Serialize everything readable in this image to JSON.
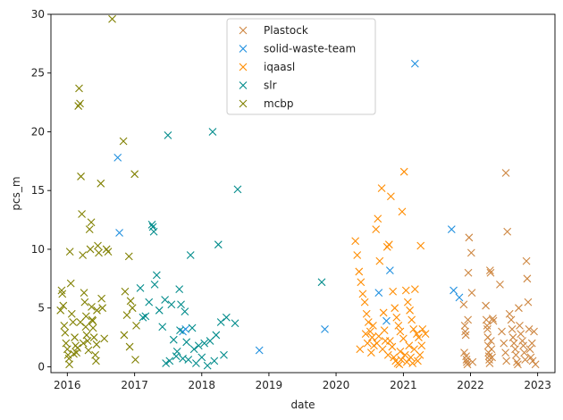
{
  "chart_data": {
    "type": "scatter",
    "marker": "x",
    "xlabel": "date",
    "ylabel": "pcs_m",
    "xlim": [
      "2015-10-04",
      "2023-04-05"
    ],
    "ylim": [
      -0.5,
      30
    ],
    "x_ticks": [
      "2016",
      "2017",
      "2018",
      "2019",
      "2020",
      "2021",
      "2022",
      "2023"
    ],
    "y_ticks": [
      0,
      5,
      10,
      15,
      20,
      25,
      30
    ],
    "grid": false,
    "legend_position": "top-center",
    "series": [
      {
        "name": "Plastock",
        "color": "#cd853f",
        "points": [
          [
            "2021-11-25",
            5.3
          ],
          [
            "2021-12-01",
            3.5
          ],
          [
            "2021-12-03",
            3.0
          ],
          [
            "2021-12-06",
            2.7
          ],
          [
            "2021-12-08",
            0.9
          ],
          [
            "2021-12-10",
            0.6
          ],
          [
            "2021-12-12",
            0.4
          ],
          [
            "2021-12-15",
            0.2
          ],
          [
            "2021-12-20",
            8.0
          ],
          [
            "2021-12-24",
            11.0
          ],
          [
            "2022-01-05",
            9.7
          ],
          [
            "2022-01-08",
            6.3
          ],
          [
            "2022-01-12",
            0.4
          ],
          [
            "2021-11-28",
            1.2
          ],
          [
            "2021-12-18",
            4.0
          ],
          [
            "2022-03-25",
            5.2
          ],
          [
            "2022-03-28",
            4.0
          ],
          [
            "2022-04-01",
            3.5
          ],
          [
            "2022-04-03",
            3.2
          ],
          [
            "2022-04-05",
            2.5
          ],
          [
            "2022-04-07",
            1.8
          ],
          [
            "2022-04-09",
            1.2
          ],
          [
            "2022-04-11",
            0.9
          ],
          [
            "2022-04-13",
            0.6
          ],
          [
            "2022-04-15",
            0.3
          ],
          [
            "2022-04-17",
            8.2
          ],
          [
            "2022-04-20",
            8.0
          ],
          [
            "2022-04-22",
            2.2
          ],
          [
            "2022-04-25",
            1.5
          ],
          [
            "2022-04-28",
            0.8
          ],
          [
            "2022-05-02",
            4.1
          ],
          [
            "2022-05-05",
            3.9
          ],
          [
            "2022-06-10",
            7.0
          ],
          [
            "2022-06-20",
            3.0
          ],
          [
            "2022-07-01",
            2.0
          ],
          [
            "2022-07-10",
            1.2
          ],
          [
            "2022-07-15",
            0.5
          ],
          [
            "2022-07-20",
            11.5
          ],
          [
            "2022-07-12",
            16.5
          ],
          [
            "2022-08-01",
            4.5
          ],
          [
            "2022-08-10",
            4.0
          ],
          [
            "2022-08-15",
            3.2
          ],
          [
            "2022-08-20",
            2.5
          ],
          [
            "2022-08-25",
            2.0
          ],
          [
            "2022-09-01",
            1.5
          ],
          [
            "2022-09-05",
            1.0
          ],
          [
            "2022-09-10",
            0.4
          ],
          [
            "2022-09-15",
            0.2
          ],
          [
            "2022-09-20",
            5.0
          ],
          [
            "2022-09-25",
            3.5
          ],
          [
            "2022-10-01",
            2.8
          ],
          [
            "2022-10-10",
            2.2
          ],
          [
            "2022-10-15",
            1.8
          ],
          [
            "2022-10-20",
            1.2
          ],
          [
            "2022-10-25",
            0.6
          ],
          [
            "2022-11-01",
            9.0
          ],
          [
            "2022-11-05",
            7.5
          ],
          [
            "2022-11-10",
            5.5
          ],
          [
            "2022-11-15",
            3.2
          ],
          [
            "2022-11-20",
            1.5
          ],
          [
            "2022-11-25",
            0.8
          ],
          [
            "2022-12-01",
            2.0
          ],
          [
            "2022-12-05",
            0.5
          ],
          [
            "2022-12-12",
            3.0
          ],
          [
            "2022-12-20",
            0.2
          ]
        ]
      },
      {
        "name": "solid-waste-team",
        "color": "#1f8fdf",
        "points": [
          [
            "2016-10-01",
            17.8
          ],
          [
            "2016-10-10",
            11.4
          ],
          [
            "2017-09-20",
            3.0
          ],
          [
            "2017-10-05",
            3.2
          ],
          [
            "2018-11-10",
            1.4
          ],
          [
            "2019-11-01",
            3.2
          ],
          [
            "2020-08-20",
            6.3
          ],
          [
            "2020-10-01",
            3.9
          ],
          [
            "2020-10-20",
            8.2
          ],
          [
            "2021-03-05",
            25.8
          ],
          [
            "2021-09-20",
            11.7
          ],
          [
            "2021-10-01",
            6.5
          ],
          [
            "2021-11-01",
            5.9
          ]
        ]
      },
      {
        "name": "iqaasl",
        "color": "#ff8c00",
        "points": [
          [
            "2020-04-15",
            10.7
          ],
          [
            "2020-04-25",
            9.5
          ],
          [
            "2020-05-05",
            8.1
          ],
          [
            "2020-05-15",
            7.2
          ],
          [
            "2020-05-25",
            6.2
          ],
          [
            "2020-06-05",
            5.5
          ],
          [
            "2020-06-15",
            4.5
          ],
          [
            "2020-06-25",
            3.8
          ],
          [
            "2020-07-05",
            3.0
          ],
          [
            "2020-07-15",
            2.5
          ],
          [
            "2020-07-25",
            1.8
          ],
          [
            "2020-08-05",
            11.7
          ],
          [
            "2020-08-15",
            12.6
          ],
          [
            "2020-08-25",
            9.0
          ],
          [
            "2020-09-05",
            15.2
          ],
          [
            "2020-09-15",
            4.6
          ],
          [
            "2020-09-25",
            2.2
          ],
          [
            "2020-10-05",
            10.2
          ],
          [
            "2020-10-15",
            10.4
          ],
          [
            "2020-10-25",
            14.5
          ],
          [
            "2020-11-05",
            6.4
          ],
          [
            "2020-11-15",
            5.0
          ],
          [
            "2020-11-25",
            4.2
          ],
          [
            "2020-12-05",
            3.5
          ],
          [
            "2020-12-15",
            3.0
          ],
          [
            "2020-12-25",
            13.2
          ],
          [
            "2021-01-05",
            16.6
          ],
          [
            "2021-01-15",
            6.5
          ],
          [
            "2021-01-25",
            5.5
          ],
          [
            "2021-02-05",
            4.8
          ],
          [
            "2021-02-15",
            4.0
          ],
          [
            "2021-02-25",
            3.2
          ],
          [
            "2021-03-05",
            6.6
          ],
          [
            "2021-03-15",
            2.8
          ],
          [
            "2021-03-25",
            2.5
          ],
          [
            "2021-04-05",
            10.3
          ],
          [
            "2021-04-15",
            3.2
          ],
          [
            "2021-05-01",
            2.8
          ],
          [
            "2020-05-10",
            1.5
          ],
          [
            "2020-06-10",
            2.8
          ],
          [
            "2020-07-10",
            1.2
          ],
          [
            "2020-08-10",
            2.0
          ],
          [
            "2020-09-10",
            1.5
          ],
          [
            "2020-10-10",
            1.0
          ],
          [
            "2020-11-10",
            0.8
          ],
          [
            "2020-11-20",
            0.5
          ],
          [
            "2020-12-01",
            0.3
          ],
          [
            "2020-12-10",
            0.2
          ],
          [
            "2020-12-20",
            0.6
          ],
          [
            "2021-01-10",
            1.0
          ],
          [
            "2021-01-20",
            0.4
          ],
          [
            "2021-02-01",
            1.8
          ],
          [
            "2021-02-10",
            0.8
          ],
          [
            "2021-02-20",
            0.3
          ],
          [
            "2021-03-01",
            1.5
          ],
          [
            "2021-03-20",
            0.5
          ],
          [
            "2021-04-01",
            1.0
          ],
          [
            "2021-04-10",
            1.8
          ],
          [
            "2020-06-20",
            2.0
          ],
          [
            "2020-07-20",
            3.5
          ],
          [
            "2020-08-20",
            2.6
          ],
          [
            "2020-09-20",
            3.1
          ],
          [
            "2020-10-20",
            2.2
          ],
          [
            "2020-11-01",
            1.7
          ],
          [
            "2020-12-15",
            1.3
          ],
          [
            "2021-01-01",
            2.4
          ]
        ]
      },
      {
        "name": "slr",
        "color": "#008b8b",
        "points": [
          [
            "2017-02-01",
            6.7
          ],
          [
            "2017-02-15",
            4.2
          ],
          [
            "2017-03-01",
            4.3
          ],
          [
            "2017-03-20",
            5.5
          ],
          [
            "2017-04-05",
            12.1
          ],
          [
            "2017-04-10",
            11.9
          ],
          [
            "2017-04-15",
            11.5
          ],
          [
            "2017-04-20",
            7.0
          ],
          [
            "2017-05-01",
            7.8
          ],
          [
            "2017-05-15",
            4.8
          ],
          [
            "2017-06-01",
            3.4
          ],
          [
            "2017-06-15",
            5.7
          ],
          [
            "2017-07-01",
            19.7
          ],
          [
            "2017-07-10",
            0.5
          ],
          [
            "2017-07-20",
            5.3
          ],
          [
            "2017-08-01",
            2.3
          ],
          [
            "2017-08-15",
            0.9
          ],
          [
            "2017-09-01",
            6.6
          ],
          [
            "2017-09-10",
            5.3
          ],
          [
            "2017-09-20",
            0.7
          ],
          [
            "2017-10-01",
            4.7
          ],
          [
            "2017-10-10",
            2.1
          ],
          [
            "2017-10-20",
            0.6
          ],
          [
            "2017-11-01",
            9.5
          ],
          [
            "2017-11-10",
            3.3
          ],
          [
            "2017-11-20",
            1.5
          ],
          [
            "2017-12-01",
            0.3
          ],
          [
            "2017-12-15",
            1.8
          ],
          [
            "2018-01-01",
            0.8
          ],
          [
            "2018-01-15",
            2.0
          ],
          [
            "2018-02-01",
            0.1
          ],
          [
            "2018-02-15",
            2.2
          ],
          [
            "2018-03-01",
            20.0
          ],
          [
            "2018-03-10",
            0.5
          ],
          [
            "2018-03-20",
            2.7
          ],
          [
            "2018-04-01",
            10.4
          ],
          [
            "2018-04-15",
            3.8
          ],
          [
            "2018-05-01",
            1.0
          ],
          [
            "2018-05-15",
            4.2
          ],
          [
            "2018-07-15",
            15.1
          ],
          [
            "2018-07-01",
            3.7
          ],
          [
            "2019-10-15",
            7.2
          ],
          [
            "2017-08-20",
            1.3
          ],
          [
            "2017-06-20",
            0.3
          ],
          [
            "2017-09-05",
            3.1
          ]
        ]
      },
      {
        "name": "mcbp",
        "color": "#808000",
        "points": [
          [
            "2015-11-25",
            4.8
          ],
          [
            "2015-12-01",
            6.5
          ],
          [
            "2015-12-05",
            6.2
          ],
          [
            "2015-12-10",
            5.2
          ],
          [
            "2015-12-15",
            3.5
          ],
          [
            "2015-12-20",
            2.9
          ],
          [
            "2015-12-25",
            2.0
          ],
          [
            "2016-01-01",
            1.5
          ],
          [
            "2016-01-05",
            1.0
          ],
          [
            "2016-01-10",
            0.7
          ],
          [
            "2016-01-15",
            9.8
          ],
          [
            "2016-01-20",
            7.1
          ],
          [
            "2016-01-25",
            4.5
          ],
          [
            "2016-02-01",
            3.8
          ],
          [
            "2016-02-10",
            2.5
          ],
          [
            "2016-02-15",
            1.8
          ],
          [
            "2016-02-20",
            1.2
          ],
          [
            "2016-02-25",
            1.6
          ],
          [
            "2016-03-01",
            22.2
          ],
          [
            "2016-03-05",
            23.7
          ],
          [
            "2016-03-10",
            22.4
          ],
          [
            "2016-03-15",
            16.2
          ],
          [
            "2016-03-20",
            13.0
          ],
          [
            "2016-03-25",
            9.5
          ],
          [
            "2016-04-01",
            6.3
          ],
          [
            "2016-04-05",
            5.5
          ],
          [
            "2016-04-10",
            3.4
          ],
          [
            "2016-04-15",
            2.7
          ],
          [
            "2016-04-20",
            2.2
          ],
          [
            "2016-04-25",
            1.4
          ],
          [
            "2016-05-01",
            11.7
          ],
          [
            "2016-05-05",
            10.0
          ],
          [
            "2016-05-10",
            12.3
          ],
          [
            "2016-05-15",
            4.0
          ],
          [
            "2016-05-20",
            3.3
          ],
          [
            "2016-05-25",
            2.5
          ],
          [
            "2016-06-01",
            1.0
          ],
          [
            "2016-06-05",
            0.5
          ],
          [
            "2016-06-10",
            4.8
          ],
          [
            "2016-06-15",
            10.3
          ],
          [
            "2016-06-20",
            9.7
          ],
          [
            "2016-07-01",
            15.6
          ],
          [
            "2016-07-05",
            5.8
          ],
          [
            "2016-07-10",
            5.0
          ],
          [
            "2016-07-20",
            2.4
          ],
          [
            "2016-08-01",
            10.0
          ],
          [
            "2016-08-10",
            9.8
          ],
          [
            "2016-09-01",
            29.6
          ],
          [
            "2016-11-01",
            19.2
          ],
          [
            "2016-11-10",
            6.4
          ],
          [
            "2016-11-20",
            4.4
          ],
          [
            "2016-12-01",
            9.4
          ],
          [
            "2016-12-10",
            5.6
          ],
          [
            "2016-12-20",
            5.0
          ],
          [
            "2017-01-01",
            16.4
          ],
          [
            "2017-01-10",
            3.5
          ],
          [
            "2016-11-05",
            2.7
          ],
          [
            "2016-12-05",
            1.7
          ],
          [
            "2017-01-05",
            0.6
          ],
          [
            "2016-01-12",
            0.2
          ],
          [
            "2016-03-12",
            3.8
          ],
          [
            "2016-04-12",
            4.3
          ],
          [
            "2016-05-12",
            5.1
          ],
          [
            "2016-05-18",
            3.9
          ],
          [
            "2016-06-08",
            1.9
          ],
          [
            "2016-02-05",
            1.1
          ],
          [
            "2016-03-28",
            2.0
          ]
        ]
      }
    ]
  }
}
